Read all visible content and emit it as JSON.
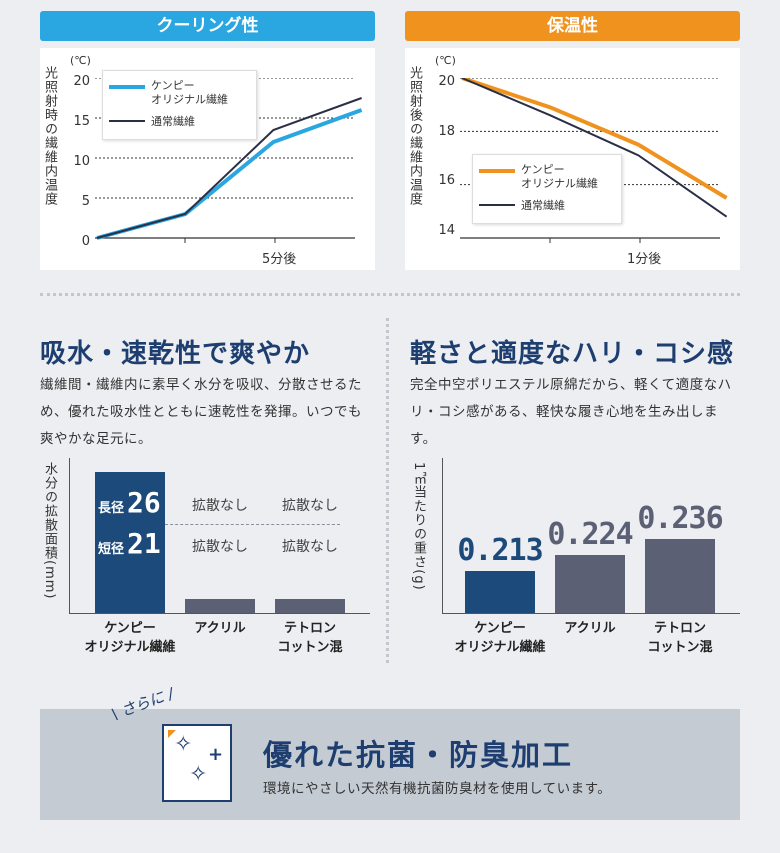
{
  "cooling": {
    "header": "クーリング性",
    "ylabel": "光照射時の繊維内温度",
    "unit": "(℃)",
    "ticks": [
      "20",
      "15",
      "10",
      "5",
      "0"
    ],
    "xtick": "5分後",
    "legend": [
      "ケンピー\nオリジナル繊維",
      "通常繊維"
    ]
  },
  "warmth": {
    "header": "保温性",
    "ylabel": "光照射後の繊維内温度",
    "unit": "(℃)",
    "ticks": [
      "20",
      "18",
      "16",
      "14"
    ],
    "xtick": "1分後",
    "legend": [
      "ケンピー\nオリジナル繊維",
      "通常繊維"
    ]
  },
  "absorb": {
    "title": "吸水・速乾性で爽やか",
    "text": "繊維間・繊維内に素早く水分を吸収、分散させるため、優れた吸水性とともに速乾性を発揮。いつでも爽やかな足元に。",
    "ylabel": "水分の拡散面積(mm)",
    "long_label": "長径",
    "long_value": "26",
    "short_label": "短径",
    "short_value": "21",
    "no_spread": "拡散なし",
    "categories": [
      "ケンピー\nオリジナル繊維",
      "アクリル",
      "テトロン\nコットン混"
    ]
  },
  "light": {
    "title": "軽さと適度なハリ・コシ感",
    "text": "完全中空ポリエステル原綿だから、軽くて適度なハリ・コシ感がある、軽快な履き心地を生み出します。",
    "ylabel": "1㎥当たりの重さ(g)",
    "categories": [
      "ケンピー\nオリジナル繊維",
      "アクリル",
      "テトロン\nコットン混"
    ],
    "values": [
      "0.213",
      "0.224",
      "0.236"
    ]
  },
  "banner": {
    "tag": "さらに",
    "title": "優れた抗菌・防臭加工",
    "text": "環境にやさしい天然有機抗菌防臭材を使用しています。"
  },
  "chart_data": [
    {
      "type": "line",
      "title": "クーリング性",
      "ylabel": "光照射時の繊維内温度",
      "ylim": [
        0,
        20
      ],
      "x": [
        "0",
        "",
        "5分後",
        ""
      ],
      "series": [
        {
          "name": "ケンピーオリジナル繊維",
          "values": [
            0,
            3,
            12,
            16
          ]
        },
        {
          "name": "通常繊維",
          "values": [
            0,
            3,
            13.5,
            17.5
          ]
        }
      ]
    },
    {
      "type": "line",
      "title": "保温性",
      "ylabel": "光照射後の繊維内温度",
      "ylim": [
        14,
        20
      ],
      "x": [
        "0",
        "",
        "1分後",
        ""
      ],
      "series": [
        {
          "name": "ケンピーオリジナル繊維",
          "values": [
            20,
            18.9,
            17.5,
            15.5
          ]
        },
        {
          "name": "通常繊維",
          "values": [
            20,
            18.6,
            17.1,
            14.8
          ]
        }
      ]
    },
    {
      "type": "bar",
      "ylabel": "水分の拡散面積(mm)",
      "categories": [
        "ケンピーオリジナル繊維",
        "アクリル",
        "テトロンコットン混"
      ],
      "series": [
        {
          "name": "長径",
          "values": [
            26,
            0,
            0
          ]
        },
        {
          "name": "短径",
          "values": [
            21,
            0,
            0
          ]
        }
      ]
    },
    {
      "type": "bar",
      "ylabel": "1㎥当たりの重さ(g)",
      "categories": [
        "ケンピーオリジナル繊維",
        "アクリル",
        "テトロンコットン混"
      ],
      "values": [
        0.213,
        0.224,
        0.236
      ]
    }
  ],
  "colors": {
    "accent_blue": "#2aa6e0",
    "accent_orange": "#f0921e",
    "navy": "#1c4a7a",
    "gray_bar": "#5c6074",
    "dark_line": "#2b2f45"
  }
}
